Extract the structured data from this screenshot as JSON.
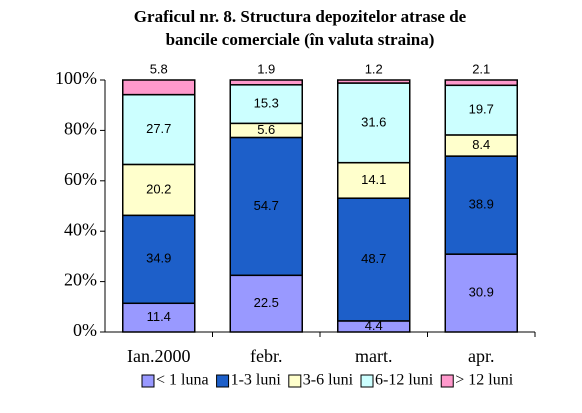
{
  "chart_data": {
    "type": "stacked_bar",
    "title": [
      "Graficul nr. 8.  Structura depozitelor atrase de",
      "bancile comerciale (în valuta straina)"
    ],
    "categories": [
      "Ian.2000",
      "febr.",
      "mart.",
      "apr."
    ],
    "series": [
      {
        "name": "< 1 luna",
        "color": "#9999ff",
        "values": [
          11.4,
          22.5,
          4.4,
          30.9
        ]
      },
      {
        "name": "1-3 luni",
        "color": "#1d5fc9",
        "values": [
          34.9,
          54.7,
          48.7,
          38.9
        ]
      },
      {
        "name": "3-6 luni",
        "color": "#ffffcc",
        "values": [
          20.2,
          5.6,
          14.1,
          8.4
        ]
      },
      {
        "name": "6-12 luni",
        "color": "#ccffff",
        "values": [
          27.7,
          15.3,
          31.6,
          19.7
        ]
      },
      {
        "name": "> 12 luni",
        "color": "#ff99cc",
        "values": [
          5.8,
          1.9,
          1.2,
          2.1
        ]
      }
    ],
    "ylim": [
      0,
      100
    ],
    "yticks": [
      {
        "value": 0,
        "label": "0%"
      },
      {
        "value": 20,
        "label": "20%"
      },
      {
        "value": 40,
        "label": "40%"
      },
      {
        "value": 60,
        "label": "60%"
      },
      {
        "value": 80,
        "label": "80%"
      },
      {
        "value": 100,
        "label": "100%"
      }
    ],
    "legend": "bottom"
  }
}
